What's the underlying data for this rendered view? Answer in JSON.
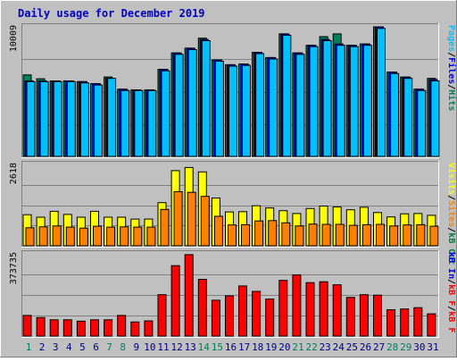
{
  "chart_data": {
    "type": "bar",
    "title": "Daily usage for December 2019",
    "categories": [
      "1",
      "2",
      "3",
      "4",
      "5",
      "6",
      "7",
      "8",
      "9",
      "10",
      "11",
      "12",
      "13",
      "14",
      "15",
      "16",
      "17",
      "18",
      "19",
      "20",
      "21",
      "22",
      "23",
      "24",
      "25",
      "26",
      "27",
      "28",
      "29",
      "30",
      "31"
    ],
    "weekend_days": [
      "1",
      "7",
      "8",
      "14",
      "15",
      "21",
      "22",
      "28",
      "29"
    ],
    "panels": [
      {
        "name": "top",
        "max_label": "10009",
        "ymax": 10009,
        "right_label": [
          "Pages",
          "/",
          "Files",
          "/",
          "Hits"
        ],
        "series": [
          {
            "name": "Hits",
            "color": "#00805c",
            "values": [
              6294,
              5996,
              5835,
              5835,
              5781,
              5621,
              6135,
              5193,
              5139,
              5139,
              6722,
              7990,
              8357,
              9131,
              7455,
              7079,
              7132,
              8045,
              7632,
              9464,
              7990,
              8581,
              9249,
              9464,
              8581,
              8687,
              10009,
              6508,
              6133,
              5193,
              6027
            ]
          },
          {
            "name": "Files",
            "color": "#0000ff",
            "values": [
              5835,
              5835,
              5835,
              5835,
              5781,
              5621,
              6028,
              5193,
              5139,
              5139,
              6722,
              7990,
              8357,
              9036,
              7455,
              7079,
              7132,
              8045,
              7632,
              9464,
              7990,
              8581,
              9036,
              8687,
              8581,
              8687,
              10009,
              6508,
              6133,
              5193,
              5941
            ]
          },
          {
            "name": "Pages",
            "color": "#00c0ff",
            "values": [
              5781,
              5781,
              5781,
              5781,
              5675,
              5514,
              6028,
              5086,
              5086,
              5086,
              6615,
              7883,
              8250,
              8937,
              7348,
              6972,
              7025,
              7938,
              7525,
              9357,
              7883,
              8474,
              8937,
              8581,
              8474,
              8581,
              9885,
              6401,
              6027,
              5086,
              5835
            ]
          }
        ]
      },
      {
        "name": "middle",
        "max_label": "2618",
        "ymax": 2618,
        "right_label": [
          "Visits",
          "/",
          "Sites",
          "/",
          "kB Out"
        ],
        "series": [
          {
            "name": "Visits",
            "color": "#ffff00",
            "values": [
              1000,
              920,
              1110,
              1010,
              920,
              1110,
              920,
              920,
              860,
              860,
              1390,
              2420,
              2520,
              2380,
              1540,
              1090,
              1100,
              1290,
              1220,
              1130,
              1040,
              1200,
              1280,
              1250,
              1160,
              1240,
              1070,
              930,
              1030,
              1040,
              980
            ]
          },
          {
            "name": "Sites",
            "color": "#ff8000",
            "values": [
              580,
              610,
              640,
              600,
              570,
              630,
              600,
              610,
              600,
              600,
              1170,
              1740,
              1720,
              1590,
              950,
              670,
              680,
              800,
              810,
              740,
              640,
              700,
              690,
              690,
              660,
              680,
              690,
              640,
              670,
              680,
              630
            ]
          }
        ]
      },
      {
        "name": "bottom",
        "max_label": "373735",
        "ymax": 373735,
        "right_label": [
          "kB In",
          "/",
          "kB F",
          "/",
          "kB F"
        ],
        "series": [
          {
            "name": "kB F",
            "color": "#ff0000",
            "values": [
              94000,
              84000,
              74000,
              74000,
              68000,
              74000,
              74000,
              94000,
              64000,
              69000,
              188000,
              320000,
              370000,
              258000,
              163000,
              183000,
              228000,
              203000,
              168000,
              253000,
              278000,
              243000,
              247000,
              233000,
              176000,
              188000,
              186000,
              120000,
              123000,
              129000,
              101000
            ]
          }
        ]
      }
    ]
  }
}
